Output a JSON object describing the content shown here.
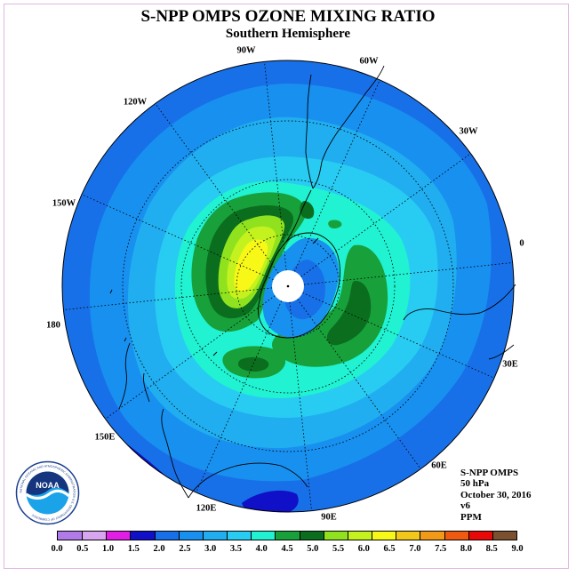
{
  "header": {
    "title": "S-NPP OMPS OZONE MIXING RATIO",
    "subtitle": "Southern Hemisphere"
  },
  "map": {
    "projection": "south polar stereographic",
    "longitude_labels": [
      "0",
      "30E",
      "60E",
      "90E",
      "120E",
      "150E",
      "180",
      "150W",
      "120W",
      "90W",
      "60W",
      "30W"
    ],
    "missing_data_region": "south pole (white disc)"
  },
  "info": {
    "instrument": "S-NPP OMPS",
    "level": "50 hPa",
    "date": "October 30, 2016",
    "version": "v6",
    "units": "PPM"
  },
  "logo": {
    "name": "NOAA",
    "ring_text": "NATIONAL OCEANIC AND ATMOSPHERIC ADMINISTRATION  U.S. DEPARTMENT OF COMMERCE"
  },
  "colorbar": {
    "ticks": [
      "0.0",
      "0.5",
      "1.0",
      "1.5",
      "2.0",
      "2.5",
      "3.0",
      "3.5",
      "4.0",
      "4.5",
      "5.0",
      "5.5",
      "6.0",
      "6.5",
      "7.0",
      "7.5",
      "8.0",
      "8.5",
      "9.0"
    ],
    "colors": [
      "#b07ae8",
      "#d8a6f0",
      "#e21ee6",
      "#1010c8",
      "#1870e8",
      "#1890f0",
      "#20aef0",
      "#28ccf2",
      "#20f2d2",
      "#18a03a",
      "#0a6e1e",
      "#90e21e",
      "#c4f21e",
      "#f8f818",
      "#f2c81a",
      "#f29a18",
      "#f05a10",
      "#e80808"
    ],
    "last_color": "#7a5030"
  }
}
